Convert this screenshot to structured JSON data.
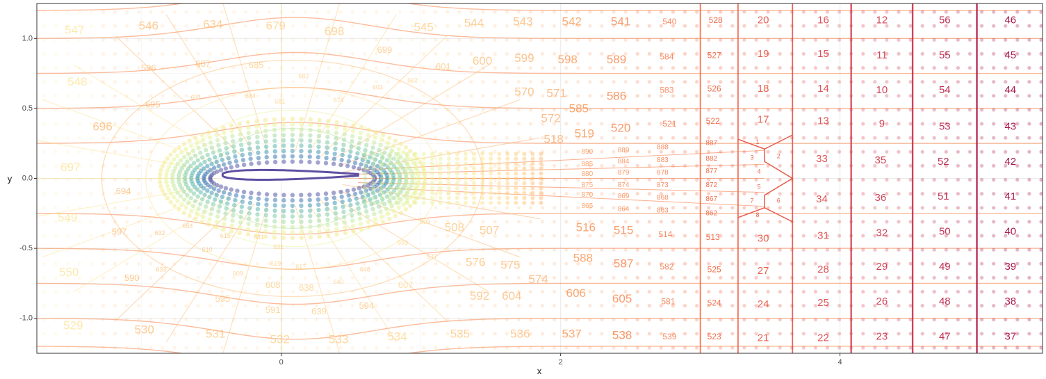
{
  "chart_data": {
    "type": "scatter",
    "xlabel": "x",
    "ylabel": "y",
    "xlim": [
      -1.75,
      5.45
    ],
    "ylim": [
      -1.25,
      1.25
    ],
    "x_ticks": [
      {
        "value": 0,
        "label": "0"
      },
      {
        "value": 2,
        "label": "2"
      },
      {
        "value": 4,
        "label": "4"
      }
    ],
    "y_ticks": [
      {
        "value": 1.0,
        "label": "1.0"
      },
      {
        "value": 0.5,
        "label": "0.5"
      },
      {
        "value": 0.0,
        "label": "0.0"
      },
      {
        "value": -0.5,
        "label": "-0.5"
      },
      {
        "value": -1.0,
        "label": "-1.0"
      }
    ],
    "grid": true,
    "legend": "none",
    "colors": {
      "palette": [
        "#5e4fa2",
        "#3288bd",
        "#66c2a5",
        "#abdda4",
        "#e6f598",
        "#fee08b",
        "#fdae61",
        "#f46d43",
        "#d53e4f",
        "#9e0142"
      ],
      "panel_border": "#333333",
      "gridline": "#ebebeb"
    },
    "airfoil": {
      "leading_edge_x": -0.42,
      "trailing_edge_x": 0.55,
      "max_thickness": 0.06
    },
    "vertical_lines_x": [
      3.0,
      3.27,
      3.66,
      4.08,
      4.52,
      4.98
    ],
    "cell_labels": [
      {
        "t": "547",
        "x": -1.48,
        "y": 1.06
      },
      {
        "t": "546",
        "x": -0.95,
        "y": 1.09
      },
      {
        "t": "634",
        "x": -0.49,
        "y": 1.1
      },
      {
        "t": "679",
        "x": -0.04,
        "y": 1.09
      },
      {
        "t": "698",
        "x": 0.38,
        "y": 1.05
      },
      {
        "t": "545",
        "x": 1.02,
        "y": 1.08
      },
      {
        "t": "544",
        "x": 1.38,
        "y": 1.11
      },
      {
        "t": "543",
        "x": 1.73,
        "y": 1.12
      },
      {
        "t": "542",
        "x": 2.08,
        "y": 1.12
      },
      {
        "t": "541",
        "x": 2.43,
        "y": 1.12
      },
      {
        "t": "540",
        "x": 2.78,
        "y": 1.12
      },
      {
        "t": "528",
        "x": 3.11,
        "y": 1.13
      },
      {
        "t": "20",
        "x": 3.45,
        "y": 1.13
      },
      {
        "t": "16",
        "x": 3.88,
        "y": 1.13
      },
      {
        "t": "12",
        "x": 4.3,
        "y": 1.13
      },
      {
        "t": "56",
        "x": 4.75,
        "y": 1.13
      },
      {
        "t": "46",
        "x": 5.22,
        "y": 1.13
      },
      {
        "t": "596",
        "x": -0.95,
        "y": 0.79
      },
      {
        "t": "687",
        "x": -0.56,
        "y": 0.82
      },
      {
        "t": "685",
        "x": -0.18,
        "y": 0.81
      },
      {
        "t": "682",
        "x": 0.16,
        "y": 0.73
      },
      {
        "t": "699",
        "x": 0.74,
        "y": 0.92
      },
      {
        "t": "601",
        "x": 1.16,
        "y": 0.8
      },
      {
        "t": "600",
        "x": 1.44,
        "y": 0.84
      },
      {
        "t": "599",
        "x": 1.74,
        "y": 0.86
      },
      {
        "t": "598",
        "x": 2.05,
        "y": 0.85
      },
      {
        "t": "589",
        "x": 2.4,
        "y": 0.85
      },
      {
        "t": "584",
        "x": 2.76,
        "y": 0.87
      },
      {
        "t": "527",
        "x": 3.1,
        "y": 0.88
      },
      {
        "t": "19",
        "x": 3.45,
        "y": 0.89
      },
      {
        "t": "15",
        "x": 3.88,
        "y": 0.89
      },
      {
        "t": "11",
        "x": 4.3,
        "y": 0.88
      },
      {
        "t": "55",
        "x": 4.75,
        "y": 0.88
      },
      {
        "t": "45",
        "x": 5.22,
        "y": 0.88
      },
      {
        "t": "548",
        "x": -1.46,
        "y": 0.69
      },
      {
        "t": "602",
        "x": 0.94,
        "y": 0.7
      },
      {
        "t": "603",
        "x": 0.69,
        "y": 0.65
      },
      {
        "t": "674",
        "x": 0.41,
        "y": 0.56
      },
      {
        "t": "691",
        "x": -0.61,
        "y": 0.58
      },
      {
        "t": "684",
        "x": -0.22,
        "y": 0.59
      },
      {
        "t": "681",
        "x": -0.01,
        "y": 0.55
      },
      {
        "t": "695",
        "x": -0.92,
        "y": 0.53
      },
      {
        "t": "570",
        "x": 1.74,
        "y": 0.62
      },
      {
        "t": "571",
        "x": 1.97,
        "y": 0.61
      },
      {
        "t": "586",
        "x": 2.4,
        "y": 0.59
      },
      {
        "t": "583",
        "x": 2.76,
        "y": 0.63
      },
      {
        "t": "526",
        "x": 3.1,
        "y": 0.64
      },
      {
        "t": "18",
        "x": 3.45,
        "y": 0.64
      },
      {
        "t": "14",
        "x": 3.88,
        "y": 0.64
      },
      {
        "t": "10",
        "x": 4.3,
        "y": 0.63
      },
      {
        "t": "54",
        "x": 4.75,
        "y": 0.63
      },
      {
        "t": "44",
        "x": 5.22,
        "y": 0.63
      },
      {
        "t": "696",
        "x": -1.28,
        "y": 0.37
      },
      {
        "t": "585",
        "x": 2.13,
        "y": 0.5
      },
      {
        "t": "572",
        "x": 1.93,
        "y": 0.43
      },
      {
        "t": "519",
        "x": 2.17,
        "y": 0.32
      },
      {
        "t": "518",
        "x": 1.95,
        "y": 0.28
      },
      {
        "t": "520",
        "x": 2.43,
        "y": 0.36
      },
      {
        "t": "521",
        "x": 2.78,
        "y": 0.39
      },
      {
        "t": "522",
        "x": 3.09,
        "y": 0.41
      },
      {
        "t": "17",
        "x": 3.45,
        "y": 0.42
      },
      {
        "t": "13",
        "x": 3.88,
        "y": 0.41
      },
      {
        "t": "9",
        "x": 4.3,
        "y": 0.39
      },
      {
        "t": "53",
        "x": 4.75,
        "y": 0.37
      },
      {
        "t": "43",
        "x": 5.22,
        "y": 0.37
      },
      {
        "t": "697",
        "x": -1.51,
        "y": 0.08
      },
      {
        "t": "888",
        "x": 2.73,
        "y": 0.22
      },
      {
        "t": "887",
        "x": 3.08,
        "y": 0.25
      },
      {
        "t": "1",
        "x": 3.41,
        "y": 0.26
      },
      {
        "t": "889",
        "x": 2.45,
        "y": 0.2
      },
      {
        "t": "890",
        "x": 2.19,
        "y": 0.19
      },
      {
        "t": "883",
        "x": 2.73,
        "y": 0.13
      },
      {
        "t": "882",
        "x": 3.08,
        "y": 0.14
      },
      {
        "t": "3",
        "x": 3.37,
        "y": 0.15
      },
      {
        "t": "2",
        "x": 3.56,
        "y": 0.16
      },
      {
        "t": "884",
        "x": 2.45,
        "y": 0.12
      },
      {
        "t": "885",
        "x": 2.19,
        "y": 0.1
      },
      {
        "t": "33",
        "x": 3.87,
        "y": 0.14
      },
      {
        "t": "35",
        "x": 4.29,
        "y": 0.13
      },
      {
        "t": "52",
        "x": 4.74,
        "y": 0.12
      },
      {
        "t": "42",
        "x": 5.22,
        "y": 0.12
      },
      {
        "t": "878",
        "x": 2.73,
        "y": 0.04
      },
      {
        "t": "877",
        "x": 3.08,
        "y": 0.05
      },
      {
        "t": "4",
        "x": 3.42,
        "y": 0.05
      },
      {
        "t": "879",
        "x": 2.45,
        "y": 0.04
      },
      {
        "t": "880",
        "x": 2.19,
        "y": 0.03
      },
      {
        "t": "694",
        "x": -1.13,
        "y": -0.09
      },
      {
        "t": "873",
        "x": 2.73,
        "y": -0.05
      },
      {
        "t": "872",
        "x": 3.08,
        "y": -0.05
      },
      {
        "t": "5",
        "x": 3.42,
        "y": -0.06
      },
      {
        "t": "874",
        "x": 2.45,
        "y": -0.05
      },
      {
        "t": "875",
        "x": 2.19,
        "y": -0.05
      },
      {
        "t": "868",
        "x": 2.73,
        "y": -0.14
      },
      {
        "t": "867",
        "x": 3.08,
        "y": -0.15
      },
      {
        "t": "7",
        "x": 3.37,
        "y": -0.16
      },
      {
        "t": "6",
        "x": 3.56,
        "y": -0.16
      },
      {
        "t": "869",
        "x": 2.45,
        "y": -0.13
      },
      {
        "t": "870",
        "x": 2.19,
        "y": -0.12
      },
      {
        "t": "34",
        "x": 3.87,
        "y": -0.15
      },
      {
        "t": "36",
        "x": 4.29,
        "y": -0.14
      },
      {
        "t": "51",
        "x": 4.74,
        "y": -0.13
      },
      {
        "t": "41",
        "x": 5.22,
        "y": -0.13
      },
      {
        "t": "863",
        "x": 2.73,
        "y": -0.23
      },
      {
        "t": "862",
        "x": 3.08,
        "y": -0.25
      },
      {
        "t": "8",
        "x": 3.41,
        "y": -0.26
      },
      {
        "t": "864",
        "x": 2.45,
        "y": -0.22
      },
      {
        "t": "865",
        "x": 2.19,
        "y": -0.2
      },
      {
        "t": "549",
        "x": -1.53,
        "y": -0.28
      },
      {
        "t": "597",
        "x": -1.16,
        "y": -0.38
      },
      {
        "t": "692",
        "x": -0.87,
        "y": -0.39
      },
      {
        "t": "654",
        "x": -0.67,
        "y": -0.34
      },
      {
        "t": "615",
        "x": -0.4,
        "y": -0.41
      },
      {
        "t": "641",
        "x": -0.16,
        "y": -0.42
      },
      {
        "t": "609",
        "x": 1.03,
        "y": -0.31
      },
      {
        "t": "508",
        "x": 1.24,
        "y": -0.35
      },
      {
        "t": "507",
        "x": 1.49,
        "y": -0.37
      },
      {
        "t": "516",
        "x": 2.18,
        "y": -0.35
      },
      {
        "t": "515",
        "x": 2.45,
        "y": -0.37
      },
      {
        "t": "514",
        "x": 2.75,
        "y": -0.4
      },
      {
        "t": "513",
        "x": 3.09,
        "y": -0.42
      },
      {
        "t": "30",
        "x": 3.45,
        "y": -0.43
      },
      {
        "t": "31",
        "x": 3.88,
        "y": -0.41
      },
      {
        "t": "32",
        "x": 4.3,
        "y": -0.39
      },
      {
        "t": "50",
        "x": 4.75,
        "y": -0.38
      },
      {
        "t": "40",
        "x": 5.22,
        "y": -0.38
      },
      {
        "t": "610",
        "x": -0.53,
        "y": -0.51
      },
      {
        "t": "631",
        "x": -0.02,
        "y": -0.49
      },
      {
        "t": "593",
        "x": 0.87,
        "y": -0.46
      },
      {
        "t": "577",
        "x": 1.08,
        "y": -0.56
      },
      {
        "t": "576",
        "x": 1.39,
        "y": -0.6
      },
      {
        "t": "575",
        "x": 1.64,
        "y": -0.62
      },
      {
        "t": "588",
        "x": 2.16,
        "y": -0.57
      },
      {
        "t": "587",
        "x": 2.45,
        "y": -0.61
      },
      {
        "t": "582",
        "x": 2.76,
        "y": -0.63
      },
      {
        "t": "525",
        "x": 3.1,
        "y": -0.65
      },
      {
        "t": "27",
        "x": 3.45,
        "y": -0.66
      },
      {
        "t": "28",
        "x": 3.88,
        "y": -0.65
      },
      {
        "t": "29",
        "x": 4.3,
        "y": -0.63
      },
      {
        "t": "49",
        "x": 4.75,
        "y": -0.63
      },
      {
        "t": "39",
        "x": 5.22,
        "y": -0.63
      },
      {
        "t": "550",
        "x": -1.52,
        "y": -0.67
      },
      {
        "t": "633",
        "x": -0.86,
        "y": -0.65
      },
      {
        "t": "619",
        "x": -0.04,
        "y": -0.61
      },
      {
        "t": "617",
        "x": 0.14,
        "y": -0.63
      },
      {
        "t": "648",
        "x": 0.6,
        "y": -0.65
      },
      {
        "t": "590",
        "x": -1.07,
        "y": -0.71
      },
      {
        "t": "609",
        "x": -0.31,
        "y": -0.68
      },
      {
        "t": "608",
        "x": -0.06,
        "y": -0.76
      },
      {
        "t": "638",
        "x": 0.18,
        "y": -0.78
      },
      {
        "t": "640",
        "x": 0.41,
        "y": -0.74
      },
      {
        "t": "607",
        "x": 0.89,
        "y": -0.76
      },
      {
        "t": "574",
        "x": 1.84,
        "y": -0.72
      },
      {
        "t": "595",
        "x": -0.42,
        "y": -0.86
      },
      {
        "t": "604",
        "x": 1.65,
        "y": -0.84
      },
      {
        "t": "606",
        "x": 2.11,
        "y": -0.82
      },
      {
        "t": "592",
        "x": 1.42,
        "y": -0.84
      },
      {
        "t": "594",
        "x": 0.61,
        "y": -0.91
      },
      {
        "t": "605",
        "x": 2.44,
        "y": -0.86
      },
      {
        "t": "581",
        "x": 2.77,
        "y": -0.88
      },
      {
        "t": "524",
        "x": 3.1,
        "y": -0.89
      },
      {
        "t": "24",
        "x": 3.45,
        "y": -0.9
      },
      {
        "t": "25",
        "x": 3.88,
        "y": -0.89
      },
      {
        "t": "26",
        "x": 4.3,
        "y": -0.88
      },
      {
        "t": "48",
        "x": 4.75,
        "y": -0.88
      },
      {
        "t": "38",
        "x": 5.22,
        "y": -0.88
      },
      {
        "t": "591",
        "x": -0.06,
        "y": -0.94
      },
      {
        "t": "639",
        "x": 0.27,
        "y": -0.95
      },
      {
        "t": "529",
        "x": -1.49,
        "y": -1.05
      },
      {
        "t": "530",
        "x": -0.98,
        "y": -1.08
      },
      {
        "t": "531",
        "x": -0.47,
        "y": -1.11
      },
      {
        "t": "532",
        "x": -0.01,
        "y": -1.15
      },
      {
        "t": "533",
        "x": 0.41,
        "y": -1.15
      },
      {
        "t": "534",
        "x": 0.83,
        "y": -1.13
      },
      {
        "t": "535",
        "x": 1.28,
        "y": -1.11
      },
      {
        "t": "536",
        "x": 1.71,
        "y": -1.11
      },
      {
        "t": "537",
        "x": 2.08,
        "y": -1.11
      },
      {
        "t": "538",
        "x": 2.44,
        "y": -1.12
      },
      {
        "t": "539",
        "x": 2.78,
        "y": -1.13
      },
      {
        "t": "523",
        "x": 3.1,
        "y": -1.13
      },
      {
        "t": "21",
        "x": 3.45,
        "y": -1.14
      },
      {
        "t": "22",
        "x": 3.88,
        "y": -1.14
      },
      {
        "t": "23",
        "x": 4.3,
        "y": -1.13
      },
      {
        "t": "47",
        "x": 4.75,
        "y": -1.13
      },
      {
        "t": "37",
        "x": 5.22,
        "y": -1.13
      }
    ]
  }
}
